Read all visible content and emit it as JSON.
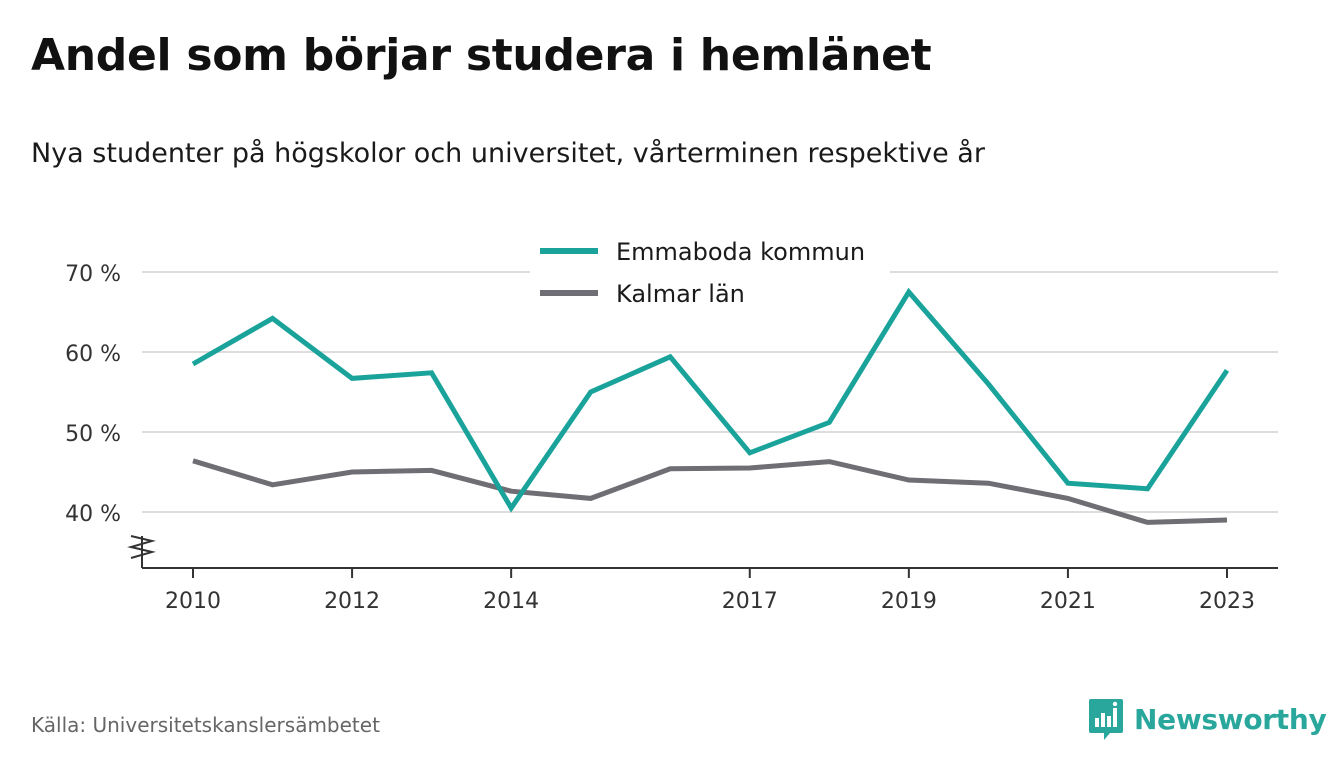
{
  "title": "Andel som börjar studera i hemlänet",
  "subtitle": "Nya studenter på högskolor och universitet, vårterminen respektive år",
  "source": "Källa: Universitetskanslersämbetet",
  "brand": {
    "name": "Newsworthy",
    "icon": "newsworthy-logo-icon"
  },
  "colors": {
    "series1": "#1aa39a",
    "series2": "#6e6e74",
    "grid": "#dddddd",
    "axis": "#333333",
    "brand": "#2aa79c"
  },
  "chart_data": {
    "type": "line",
    "title": "Andel som börjar studera i hemlänet",
    "subtitle": "Nya studenter på högskolor och universitet, vårterminen respektive år",
    "x": [
      2010,
      2011,
      2012,
      2013,
      2014,
      2015,
      2016,
      2017,
      2018,
      2019,
      2020,
      2021,
      2022,
      2023
    ],
    "x_ticks": [
      "2010",
      "2012",
      "2014",
      "2017",
      "2019",
      "2021",
      "2023"
    ],
    "y_ticks": [
      "40 %",
      "50 %",
      "60 %",
      "70 %"
    ],
    "ylim": [
      33,
      70
    ],
    "grid": true,
    "legend_position": "top-center",
    "axis_break": true,
    "series": [
      {
        "name": "Emmaboda kommun",
        "values": [
          58.5,
          64.2,
          56.7,
          57.4,
          40.5,
          55.0,
          59.4,
          47.4,
          51.2,
          67.5,
          56.0,
          43.6,
          42.9,
          57.7
        ]
      },
      {
        "name": "Kalmar län",
        "values": [
          46.4,
          43.4,
          45.0,
          45.2,
          42.6,
          41.7,
          45.4,
          45.5,
          46.3,
          44.0,
          43.6,
          41.7,
          38.7,
          39.0
        ]
      }
    ]
  }
}
